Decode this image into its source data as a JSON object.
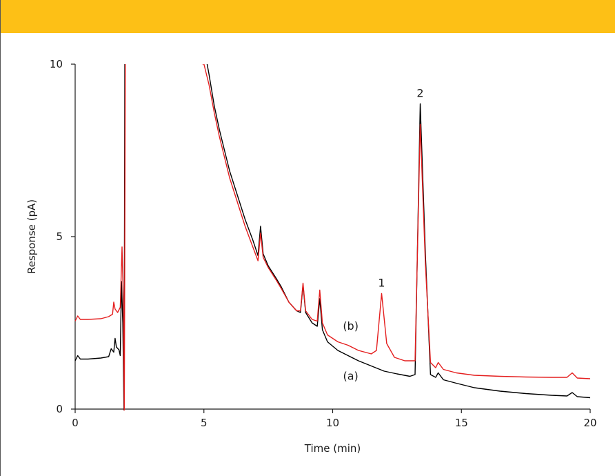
{
  "colors": {
    "banner": "#FDC016"
  },
  "chart_data": {
    "type": "line",
    "title": "",
    "xlabel": "Time (min)",
    "ylabel": "Response (pA)",
    "xlim": [
      0,
      20
    ],
    "ylim": [
      0,
      10
    ],
    "xticks": [
      0,
      5,
      10,
      15,
      20
    ],
    "yticks": [
      0,
      5,
      10
    ],
    "grid": false,
    "series": [
      {
        "name": "(a)",
        "color": "#000000",
        "points": [
          [
            0,
            1.4
          ],
          [
            0.1,
            1.55
          ],
          [
            0.2,
            1.45
          ],
          [
            0.5,
            1.45
          ],
          [
            1.0,
            1.48
          ],
          [
            1.3,
            1.52
          ],
          [
            1.4,
            1.75
          ],
          [
            1.5,
            1.65
          ],
          [
            1.55,
            2.05
          ],
          [
            1.6,
            1.8
          ],
          [
            1.7,
            1.72
          ],
          [
            1.75,
            1.55
          ],
          [
            1.8,
            3.7
          ],
          [
            1.85,
            2.5
          ],
          [
            1.9,
            -0.3
          ],
          [
            1.93,
            10.5
          ],
          [
            5.0,
            10.5
          ],
          [
            5.2,
            9.7
          ],
          [
            5.4,
            8.8
          ],
          [
            5.6,
            8.1
          ],
          [
            5.8,
            7.5
          ],
          [
            6.0,
            6.9
          ],
          [
            6.3,
            6.2
          ],
          [
            6.6,
            5.5
          ],
          [
            6.9,
            4.9
          ],
          [
            7.1,
            4.45
          ],
          [
            7.2,
            5.3
          ],
          [
            7.3,
            4.5
          ],
          [
            7.5,
            4.15
          ],
          [
            7.8,
            3.8
          ],
          [
            8.0,
            3.55
          ],
          [
            8.3,
            3.1
          ],
          [
            8.6,
            2.85
          ],
          [
            8.75,
            2.8
          ],
          [
            8.85,
            3.6
          ],
          [
            8.95,
            2.8
          ],
          [
            9.2,
            2.5
          ],
          [
            9.4,
            2.4
          ],
          [
            9.5,
            3.2
          ],
          [
            9.6,
            2.3
          ],
          [
            9.8,
            1.95
          ],
          [
            10.2,
            1.7
          ],
          [
            10.6,
            1.55
          ],
          [
            11.0,
            1.4
          ],
          [
            11.5,
            1.25
          ],
          [
            12.0,
            1.1
          ],
          [
            12.5,
            1.02
          ],
          [
            13.0,
            0.95
          ],
          [
            13.2,
            1.0
          ],
          [
            13.4,
            8.85
          ],
          [
            13.6,
            4.5
          ],
          [
            13.8,
            1.0
          ],
          [
            14.0,
            0.92
          ],
          [
            14.1,
            1.05
          ],
          [
            14.3,
            0.85
          ],
          [
            14.8,
            0.75
          ],
          [
            15.5,
            0.62
          ],
          [
            16.5,
            0.52
          ],
          [
            17.5,
            0.45
          ],
          [
            18.5,
            0.4
          ],
          [
            19.1,
            0.38
          ],
          [
            19.3,
            0.48
          ],
          [
            19.5,
            0.36
          ],
          [
            20.0,
            0.33
          ]
        ]
      },
      {
        "name": "(b)",
        "color": "#E41E1E",
        "points": [
          [
            0,
            2.55
          ],
          [
            0.1,
            2.7
          ],
          [
            0.2,
            2.6
          ],
          [
            0.5,
            2.6
          ],
          [
            1.0,
            2.62
          ],
          [
            1.3,
            2.68
          ],
          [
            1.45,
            2.75
          ],
          [
            1.5,
            3.1
          ],
          [
            1.55,
            2.9
          ],
          [
            1.65,
            2.8
          ],
          [
            1.75,
            2.95
          ],
          [
            1.82,
            4.7
          ],
          [
            1.87,
            3.2
          ],
          [
            1.91,
            -0.3
          ],
          [
            1.95,
            10.5
          ],
          [
            5.0,
            10.0
          ],
          [
            5.2,
            9.4
          ],
          [
            5.4,
            8.6
          ],
          [
            5.6,
            7.9
          ],
          [
            5.8,
            7.3
          ],
          [
            6.0,
            6.7
          ],
          [
            6.3,
            6.0
          ],
          [
            6.6,
            5.3
          ],
          [
            6.9,
            4.7
          ],
          [
            7.1,
            4.3
          ],
          [
            7.2,
            5.1
          ],
          [
            7.3,
            4.4
          ],
          [
            7.5,
            4.1
          ],
          [
            7.8,
            3.75
          ],
          [
            8.0,
            3.5
          ],
          [
            8.3,
            3.1
          ],
          [
            8.6,
            2.85
          ],
          [
            8.75,
            2.85
          ],
          [
            8.85,
            3.65
          ],
          [
            8.95,
            2.85
          ],
          [
            9.2,
            2.6
          ],
          [
            9.4,
            2.55
          ],
          [
            9.5,
            3.45
          ],
          [
            9.6,
            2.5
          ],
          [
            9.8,
            2.15
          ],
          [
            10.2,
            1.95
          ],
          [
            10.6,
            1.85
          ],
          [
            11.0,
            1.7
          ],
          [
            11.5,
            1.6
          ],
          [
            11.7,
            1.7
          ],
          [
            11.9,
            3.35
          ],
          [
            12.1,
            1.9
          ],
          [
            12.4,
            1.5
          ],
          [
            12.8,
            1.4
          ],
          [
            13.2,
            1.4
          ],
          [
            13.4,
            8.25
          ],
          [
            13.6,
            4.2
          ],
          [
            13.8,
            1.35
          ],
          [
            14.0,
            1.2
          ],
          [
            14.1,
            1.35
          ],
          [
            14.3,
            1.15
          ],
          [
            14.8,
            1.05
          ],
          [
            15.5,
            0.98
          ],
          [
            16.5,
            0.95
          ],
          [
            17.5,
            0.93
          ],
          [
            18.5,
            0.92
          ],
          [
            19.1,
            0.92
          ],
          [
            19.3,
            1.05
          ],
          [
            19.5,
            0.9
          ],
          [
            20.0,
            0.88
          ]
        ]
      }
    ],
    "annotations": [
      {
        "text": "1",
        "x": 11.9,
        "y": 3.55
      },
      {
        "text": "2",
        "x": 13.4,
        "y": 9.05
      },
      {
        "text": "(b)",
        "x": 10.7,
        "y": 2.3
      },
      {
        "text": "(a)",
        "x": 10.7,
        "y": 0.85
      }
    ]
  }
}
